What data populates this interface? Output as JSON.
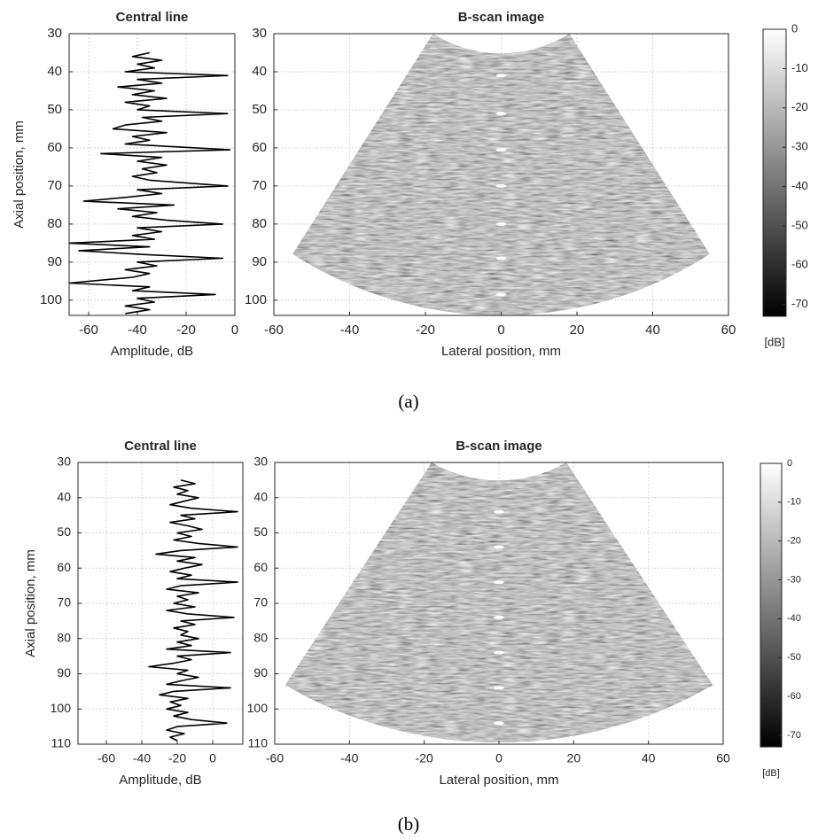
{
  "captions": [
    "(a)",
    "(b)"
  ],
  "chart_data": [
    {
      "type": "line",
      "title": "Central line",
      "xlabel": "Amplitude, dB",
      "ylabel": "Axial position, mm",
      "xlim": [
        -68,
        0
      ],
      "xticks": [
        -60,
        -40,
        -20,
        0
      ],
      "ylim": [
        30,
        104
      ],
      "yticks": [
        30,
        40,
        50,
        60,
        70,
        80,
        90,
        100
      ],
      "grid": true,
      "series": [
        {
          "color": "#000000",
          "y": [
            35,
            36,
            37,
            38,
            39,
            40,
            41,
            42,
            43,
            44,
            45,
            46,
            47,
            48,
            49,
            50,
            51,
            52,
            53,
            54,
            55,
            56,
            57,
            58,
            59,
            60.5,
            61.5,
            62.5,
            63.5,
            64.5,
            65.5,
            66.5,
            67.5,
            68.5,
            70,
            71,
            72,
            73,
            74,
            75,
            76,
            77,
            78,
            79,
            80,
            81,
            82,
            83,
            84,
            85,
            86,
            87,
            88,
            89,
            90,
            91,
            92,
            93,
            94,
            95.5,
            96.5,
            97.5,
            98.5,
            99.5,
            100.5,
            101.5,
            102.5,
            103.5
          ],
          "values": [
            -35,
            -42,
            -30,
            -40,
            -33,
            -45,
            -3,
            -40,
            -30,
            -48,
            -33,
            -42,
            -28,
            -45,
            -35,
            -40,
            -3,
            -38,
            -30,
            -45,
            -50,
            -28,
            -42,
            -35,
            -45,
            -2,
            -55,
            -30,
            -40,
            -28,
            -38,
            -32,
            -42,
            -35,
            -3,
            -40,
            -30,
            -45,
            -62,
            -25,
            -48,
            -32,
            -42,
            -28,
            -5,
            -40,
            -30,
            -42,
            -33,
            -68,
            -35,
            -64,
            -38,
            -5,
            -40,
            -32,
            -45,
            -35,
            -42,
            -68,
            -35,
            -42,
            -8,
            -40,
            -33,
            -45,
            -35,
            -45
          ]
        }
      ]
    },
    {
      "type": "sector",
      "title": "B-scan image",
      "xlabel": "Lateral position, mm",
      "xlim": [
        -60,
        60
      ],
      "xticks": [
        -60,
        -40,
        -20,
        0,
        20,
        40,
        60
      ],
      "ylim": [
        30,
        104
      ],
      "yticks": [
        30,
        40,
        50,
        60,
        70,
        80,
        90,
        100
      ],
      "grid": true,
      "targets": {
        "x": [
          0,
          0,
          0,
          0,
          0,
          0,
          0
        ],
        "y": [
          41,
          51,
          60.5,
          70,
          80,
          89,
          98.5
        ]
      }
    },
    {
      "type": "colorbar",
      "label": "[dB]",
      "ylim": [
        -73,
        0
      ],
      "yticks": [
        0,
        -10,
        -20,
        -30,
        -40,
        -50,
        -60,
        -70
      ],
      "colors": [
        "#000000",
        "#ffffff"
      ]
    },
    {
      "type": "line",
      "title": "Central line",
      "xlabel": "Amplitude, dB",
      "ylabel": "Axial position, mm",
      "xlim": [
        -76,
        17
      ],
      "xticks": [
        -60,
        -40,
        -20,
        0
      ],
      "ylim": [
        30,
        110
      ],
      "yticks": [
        30,
        40,
        50,
        60,
        70,
        80,
        90,
        100,
        110
      ],
      "grid": true,
      "series": [
        {
          "color": "#000000",
          "y": [
            35,
            36,
            37,
            38,
            39,
            40,
            41,
            42,
            43,
            44,
            45,
            46,
            47,
            48,
            49,
            50,
            51,
            52,
            53,
            54,
            55,
            56,
            57,
            58,
            59,
            60,
            61,
            62,
            63,
            64,
            65,
            66,
            67,
            68,
            69,
            70,
            71,
            72,
            73,
            74,
            75,
            76,
            77,
            78,
            79,
            80,
            81,
            82,
            83,
            84,
            85,
            86,
            87,
            88,
            89,
            90,
            91,
            92,
            93,
            94,
            95,
            96,
            97,
            98,
            99,
            100,
            101,
            102,
            103,
            104,
            105,
            106,
            107,
            108,
            109
          ],
          "values": [
            -18,
            -10,
            -22,
            -14,
            -20,
            -8,
            -16,
            -24,
            -12,
            14,
            -18,
            -10,
            -24,
            -14,
            -6,
            -20,
            -12,
            -22,
            -8,
            14,
            -18,
            -32,
            -10,
            -20,
            -6,
            -16,
            -24,
            -12,
            -20,
            14,
            -18,
            -26,
            -8,
            -20,
            -14,
            -22,
            -10,
            -26,
            -14,
            12,
            -18,
            -10,
            -22,
            -14,
            -18,
            -8,
            -20,
            -12,
            -26,
            10,
            -20,
            -12,
            -22,
            -36,
            -14,
            -20,
            -8,
            -18,
            -26,
            10,
            -22,
            -30,
            -14,
            -24,
            -18,
            -26,
            -14,
            -22,
            -12,
            8,
            -20,
            -26,
            -16,
            -24,
            -20
          ]
        }
      ]
    },
    {
      "type": "sector",
      "title": "B-scan image",
      "xlabel": "Lateral position, mm",
      "xlim": [
        -60,
        60
      ],
      "xticks": [
        -60,
        -40,
        -20,
        0,
        20,
        40,
        60
      ],
      "ylim": [
        30,
        110
      ],
      "yticks": [
        30,
        40,
        50,
        60,
        70,
        80,
        90,
        100,
        110
      ],
      "grid": true,
      "targets": {
        "x": [
          0,
          0,
          0,
          0,
          0,
          0,
          0
        ],
        "y": [
          44,
          54,
          64,
          74,
          84,
          94,
          104
        ]
      }
    },
    {
      "type": "colorbar",
      "label": "[dB]",
      "ylim": [
        -73,
        0
      ],
      "yticks": [
        0,
        -10,
        -20,
        -30,
        -40,
        -50,
        -60,
        -70
      ],
      "colors": [
        "#000000",
        "#ffffff"
      ]
    }
  ]
}
